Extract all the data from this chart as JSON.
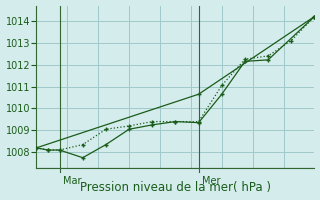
{
  "xlabel": "Pression niveau de la mer( hPa )",
  "background_color": "#d4ecec",
  "grid_color": "#a0c8c8",
  "line_color": "#1a5c1a",
  "spine_color": "#336633",
  "ylim": [
    1007.3,
    1014.7
  ],
  "yticks": [
    1008,
    1009,
    1010,
    1011,
    1012,
    1013,
    1014
  ],
  "xlim": [
    0,
    12
  ],
  "series1_x": [
    0,
    0.5,
    1,
    2,
    3,
    4,
    5,
    6,
    7,
    8,
    9,
    10,
    12
  ],
  "series1_y": [
    1008.2,
    1008.1,
    1008.1,
    1007.75,
    1008.35,
    1009.05,
    1009.25,
    1009.4,
    1009.35,
    1010.65,
    1012.15,
    1012.22,
    1014.2
  ],
  "series2_x": [
    0,
    0.5,
    1,
    2,
    3,
    4,
    5,
    6,
    7,
    8,
    9,
    10,
    11,
    12
  ],
  "series2_y": [
    1008.2,
    1008.1,
    1008.1,
    1008.35,
    1009.05,
    1009.2,
    1009.4,
    1009.4,
    1009.4,
    1011.05,
    1012.25,
    1012.4,
    1013.1,
    1014.2
  ],
  "series3_x": [
    0,
    7,
    12
  ],
  "series3_y": [
    1008.2,
    1010.65,
    1014.2
  ],
  "mar_x": 1,
  "mer_x": 7,
  "mar_label": "Mar",
  "mer_label": "Mer",
  "xlabel_fontsize": 8.5,
  "tick_fontsize": 7,
  "label_color": "#1a5c1a"
}
